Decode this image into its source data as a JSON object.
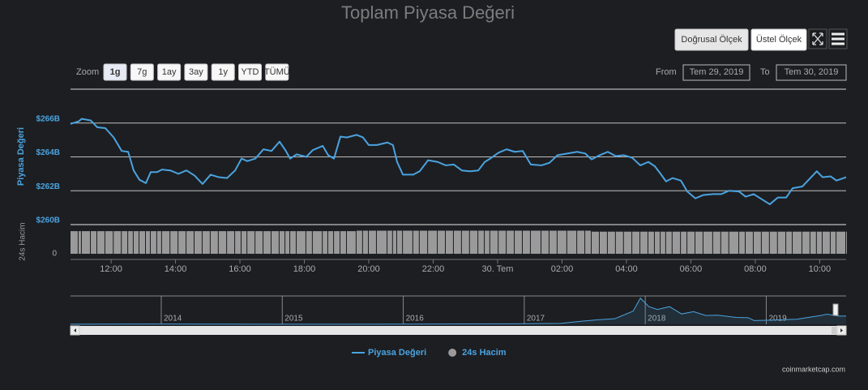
{
  "ui": {
    "scale_buttons": [
      "Doğrusal Ölçek",
      "Üstel Ölçek"
    ],
    "zoom_label": "Zoom",
    "zoom_buttons": [
      "1g",
      "7g",
      "1ay",
      "3ay",
      "1y",
      "YTD",
      "TÜMÜ"
    ],
    "zoom_active": 0,
    "from_label": "From",
    "from": "Tem 29, 2019",
    "to_label": "To",
    "to": "Tem 30, 2019",
    "credit": "coinmarketcap.com"
  },
  "chart_data": {
    "type": "line",
    "title": "Toplam Piyasa Değeri",
    "y_label": "Piyasa Değeri",
    "y2_label": "24s Hacim",
    "x": [
      10.74,
      10.99,
      11.09,
      11.37,
      11.57,
      11.82,
      12.08,
      12.33,
      12.53,
      12.7,
      12.88,
      13.08,
      13.23,
      13.43,
      13.58,
      13.84,
      14.09,
      14.34,
      14.59,
      14.84,
      15.09,
      15.34,
      15.6,
      15.85,
      16.05,
      16.23,
      16.48,
      16.73,
      16.98,
      17.23,
      17.41,
      17.56,
      17.76,
      18.06,
      18.26,
      18.57,
      18.74,
      18.92,
      19.12,
      19.32,
      19.62,
      19.82,
      20.0,
      20.25,
      20.58,
      20.75,
      20.88,
      21.06,
      21.38,
      21.58,
      21.84,
      22.14,
      22.39,
      22.64,
      22.89,
      23.14,
      23.4,
      23.6,
      23.77,
      24.03,
      24.28,
      24.53,
      24.78,
      25.03,
      25.36,
      25.61,
      25.86,
      26.16,
      26.47,
      26.72,
      26.92,
      27.17,
      27.42,
      27.67,
      27.92,
      28.18,
      28.43,
      28.68,
      28.88,
      29.06,
      29.23,
      29.43,
      29.69,
      29.89,
      30.14,
      30.39,
      30.69,
      30.94,
      31.19,
      31.5,
      31.7,
      31.95,
      32.2,
      32.45,
      32.7,
      32.96,
      33.16,
      33.46,
      33.71,
      33.91,
      34.09,
      34.34,
      34.52,
      34.82
    ],
    "xlim": [
      10.74,
      34.82
    ],
    "xticks": [
      {
        "value": 12,
        "label": "12:00"
      },
      {
        "value": 14,
        "label": "14:00"
      },
      {
        "value": 16,
        "label": "16:00"
      },
      {
        "value": 18,
        "label": "18:00"
      },
      {
        "value": 20,
        "label": "20:00"
      },
      {
        "value": 22,
        "label": "22:00"
      },
      {
        "value": 24,
        "label": "30. Tem"
      },
      {
        "value": 26,
        "label": "02:00"
      },
      {
        "value": 28,
        "label": "04:00"
      },
      {
        "value": 30,
        "label": "06:00"
      },
      {
        "value": 32,
        "label": "08:00"
      },
      {
        "value": 34,
        "label": "10:00"
      }
    ],
    "ylim": [
      260,
      268
    ],
    "yticks": [
      {
        "value": 260,
        "label": "$260B"
      },
      {
        "value": 262,
        "label": "$262B"
      },
      {
        "value": 264,
        "label": "$264B"
      },
      {
        "value": 266,
        "label": "$266B"
      }
    ],
    "y2lim": [
      0,
      100
    ],
    "y2ticks": [
      0
    ],
    "grid": true,
    "legend": "bottom",
    "series": [
      {
        "name": "Piyasa Değeri",
        "type": "line",
        "color": "#4aa3df",
        "values": [
          265.95,
          266.1,
          266.25,
          266.15,
          265.75,
          265.7,
          265.15,
          264.35,
          264.3,
          263.2,
          262.65,
          262.45,
          263.1,
          263.1,
          263.25,
          263.2,
          263.0,
          263.2,
          262.9,
          262.4,
          262.95,
          262.8,
          262.75,
          263.2,
          263.9,
          263.75,
          263.9,
          264.45,
          264.35,
          264.9,
          264.4,
          263.9,
          264.15,
          264.0,
          264.4,
          264.65,
          264.1,
          263.9,
          265.2,
          265.15,
          265.3,
          265.15,
          264.7,
          264.7,
          264.85,
          264.7,
          263.7,
          262.95,
          262.95,
          263.15,
          263.8,
          263.7,
          263.5,
          263.55,
          263.2,
          263.15,
          263.2,
          263.7,
          263.9,
          264.25,
          264.45,
          264.3,
          264.35,
          263.55,
          263.5,
          263.65,
          264.1,
          264.2,
          264.3,
          264.2,
          263.85,
          264.1,
          264.3,
          264.05,
          264.1,
          263.95,
          263.5,
          263.7,
          263.45,
          263.0,
          262.55,
          262.75,
          262.6,
          261.95,
          261.55,
          261.75,
          261.8,
          261.8,
          262.0,
          261.95,
          261.65,
          261.8,
          261.5,
          261.2,
          261.6,
          261.6,
          262.15,
          262.25,
          262.75,
          263.15,
          262.8,
          262.85,
          262.6,
          262.8
        ]
      },
      {
        "name": "24s Hacim",
        "type": "bar",
        "axis": "y2",
        "color": "#9a9a9a",
        "values": [
          93,
          93,
          93,
          93,
          93,
          93,
          93,
          93,
          93,
          93,
          93,
          93,
          93,
          93,
          93,
          93,
          93,
          93,
          93,
          93,
          93,
          93,
          93,
          93,
          93,
          93,
          93,
          93,
          93,
          93,
          93,
          93,
          93,
          93,
          93,
          93,
          93,
          93,
          93,
          93,
          95,
          95,
          95,
          95,
          95,
          95,
          95,
          95,
          95,
          95,
          95,
          95,
          95,
          95,
          95,
          95,
          95,
          95,
          95,
          95,
          95,
          95,
          95,
          95,
          95,
          95,
          95,
          95,
          95,
          95,
          91,
          91,
          91,
          91,
          91,
          91,
          91,
          91,
          91,
          91,
          91,
          91,
          91,
          91,
          91,
          91,
          91,
          91,
          91,
          91,
          91,
          91,
          91,
          91,
          91,
          91,
          91,
          91,
          91,
          91,
          91,
          91,
          91,
          91
        ]
      }
    ],
    "navigator": {
      "x": [
        2013.25,
        2013.9,
        2014.0,
        2014.5,
        2015.0,
        2015.5,
        2016.0,
        2016.5,
        2017.0,
        2017.3,
        2017.45,
        2017.6,
        2017.75,
        2017.9,
        2017.96,
        2018.03,
        2018.1,
        2018.2,
        2018.3,
        2018.4,
        2018.5,
        2018.6,
        2018.75,
        2018.85,
        2018.9,
        2019.0,
        2019.25,
        2019.45,
        2019.5,
        2019.6,
        2019.66
      ],
      "values": [
        2,
        9,
        10,
        6,
        4,
        4,
        7,
        12,
        18,
        30,
        90,
        140,
        180,
        420,
        830,
        560,
        470,
        560,
        330,
        400,
        280,
        290,
        220,
        210,
        120,
        130,
        160,
        280,
        320,
        260,
        265
      ],
      "xlim": [
        2013.25,
        2019.66
      ],
      "ylim": [
        0,
        900
      ],
      "xticks": [
        2014,
        2015,
        2016,
        2017,
        2018,
        2019
      ]
    }
  }
}
